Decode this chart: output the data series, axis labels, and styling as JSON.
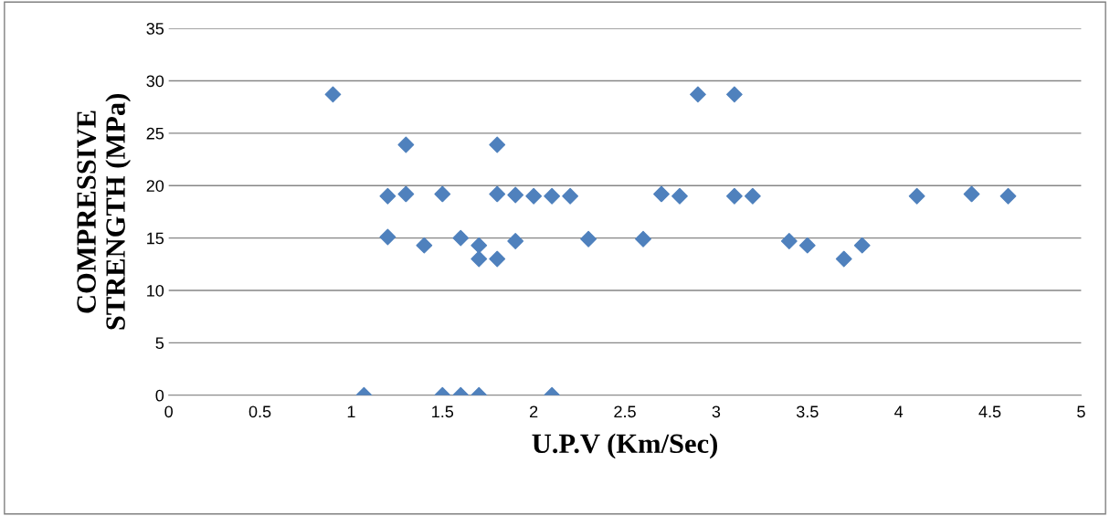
{
  "chart_data": {
    "type": "scatter",
    "xlabel": "U.P.V (Km/Sec)",
    "ylabel": "COMPRESSIVE\nSTRENGTH (MPa)",
    "x": [
      0.9,
      1.07,
      1.2,
      1.2,
      1.3,
      1.3,
      1.4,
      1.5,
      1.5,
      1.6,
      1.6,
      1.7,
      1.7,
      1.7,
      1.8,
      1.8,
      1.8,
      1.9,
      1.9,
      2.0,
      2.1,
      2.1,
      2.2,
      2.3,
      2.6,
      2.7,
      2.8,
      2.9,
      3.1,
      3.1,
      3.2,
      3.4,
      3.5,
      3.7,
      3.8,
      4.1,
      4.4,
      4.6
    ],
    "series": [
      {
        "color": "#4f81bd",
        "values": [
          28.7,
          0,
          19.0,
          15.1,
          23.9,
          19.2,
          14.3,
          19.2,
          0,
          15.0,
          0,
          14.3,
          13.0,
          0,
          23.9,
          19.2,
          13.0,
          19.1,
          14.7,
          19.0,
          19.0,
          0,
          19.0,
          14.9,
          14.9,
          19.2,
          19.0,
          28.7,
          28.7,
          19.0,
          19.0,
          14.7,
          14.3,
          13.0,
          14.3,
          19.0,
          19.2,
          19.0
        ]
      }
    ],
    "xlim": [
      0,
      5
    ],
    "xticks": [
      0,
      0.5,
      1,
      1.5,
      2,
      2.5,
      3,
      3.5,
      4,
      4.5,
      5
    ],
    "ylim": [
      0,
      35
    ],
    "yticks": [
      0,
      5,
      10,
      15,
      20,
      25,
      30,
      35
    ],
    "grid": "y",
    "marker": "diamond",
    "legend": false
  }
}
